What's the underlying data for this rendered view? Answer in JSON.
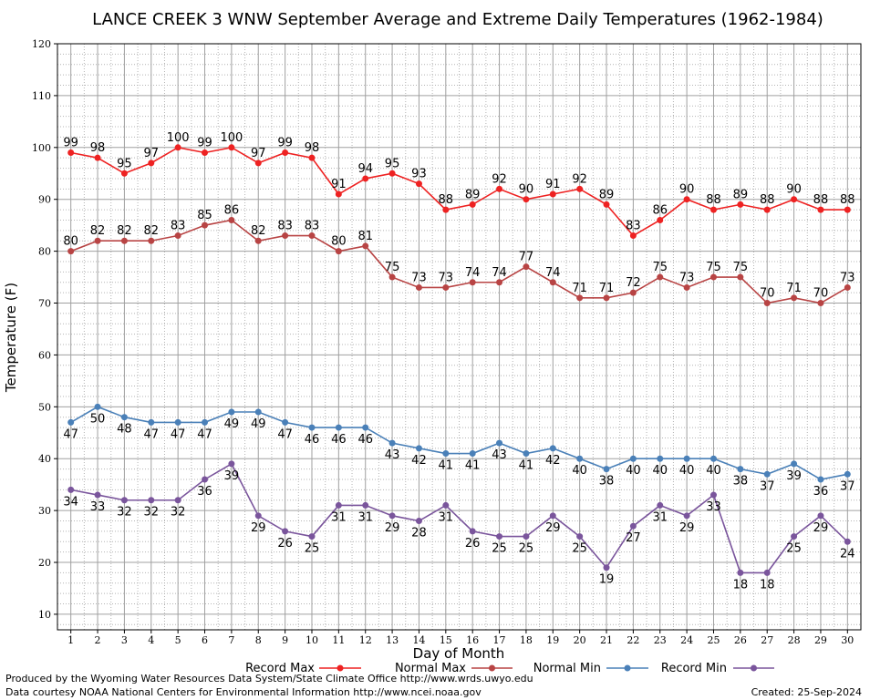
{
  "chart_data": {
    "type": "line",
    "title": "LANCE CREEK 3 WNW September Average and Extreme Daily Temperatures (1962-1984)",
    "xlabel": "Day of Month",
    "ylabel": "Temperature (F)",
    "x": [
      1,
      2,
      3,
      4,
      5,
      6,
      7,
      8,
      9,
      10,
      11,
      12,
      13,
      14,
      15,
      16,
      17,
      18,
      19,
      20,
      21,
      22,
      23,
      24,
      25,
      26,
      27,
      28,
      29,
      30
    ],
    "xlim": [
      0.5,
      30.5
    ],
    "ylim": [
      7,
      120
    ],
    "yticks": [
      10,
      20,
      30,
      40,
      50,
      60,
      70,
      80,
      90,
      100,
      110,
      120
    ],
    "grid": true,
    "legend_position": "bottom",
    "series": [
      {
        "name": "Record Max",
        "color": "#ee2222",
        "label_position": "above",
        "values": [
          99,
          98,
          95,
          97,
          100,
          99,
          100,
          97,
          99,
          98,
          91,
          94,
          95,
          93,
          88,
          89,
          92,
          90,
          91,
          92,
          89,
          83,
          86,
          90,
          88,
          89,
          88,
          90,
          88,
          88
        ]
      },
      {
        "name": "Normal Max",
        "color": "#b84444",
        "label_position": "above",
        "values": [
          80,
          82,
          82,
          82,
          83,
          85,
          86,
          82,
          83,
          83,
          80,
          81,
          75,
          73,
          73,
          74,
          74,
          77,
          74,
          71,
          71,
          72,
          75,
          73,
          75,
          75,
          70,
          71,
          70,
          73
        ]
      },
      {
        "name": "Normal Min",
        "color": "#4a80b8",
        "label_position": "below",
        "values": [
          47,
          50,
          48,
          47,
          47,
          47,
          49,
          49,
          47,
          46,
          46,
          46,
          43,
          42,
          41,
          41,
          43,
          41,
          42,
          40,
          38,
          40,
          40,
          40,
          40,
          38,
          37,
          39,
          36,
          37
        ]
      },
      {
        "name": "Record Min",
        "color": "#7a559c",
        "label_position": "below",
        "values": [
          34,
          33,
          32,
          32,
          32,
          36,
          39,
          29,
          26,
          25,
          31,
          31,
          29,
          28,
          31,
          26,
          25,
          25,
          29,
          25,
          19,
          27,
          31,
          29,
          33,
          18,
          18,
          25,
          29,
          24
        ]
      }
    ]
  },
  "footer": {
    "line1": "Produced by the Wyoming Water Resources Data System/State Climate Office http://www.wrds.uwyo.edu",
    "line2": "Data courtesy NOAA National Centers for Environmental Information http://www.ncei.noaa.gov",
    "created": "Created:  25-Sep-2024"
  }
}
